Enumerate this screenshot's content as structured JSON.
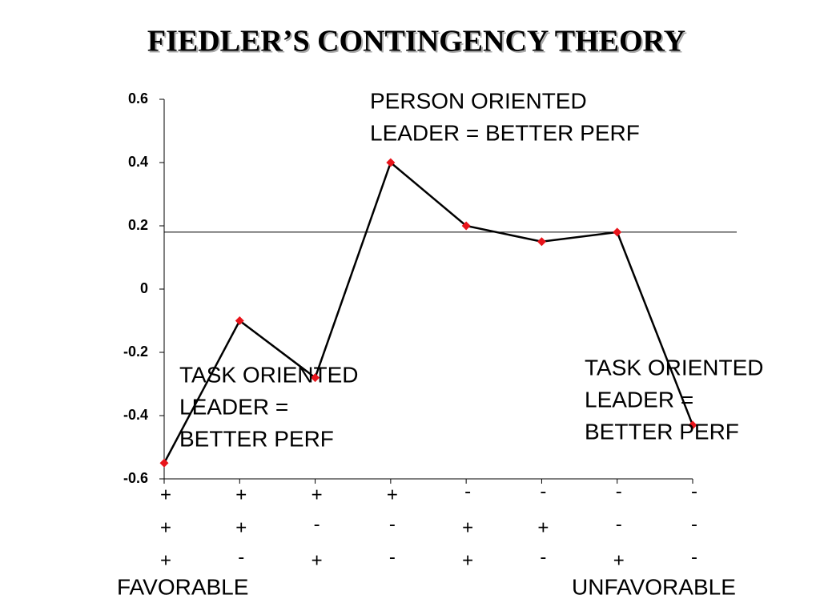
{
  "chart_data": {
    "type": "line",
    "title": "FIEDLER’S CONTINGENCY THEORY",
    "categories": [
      [
        "+",
        "+",
        "+"
      ],
      [
        "+",
        "+",
        "-"
      ],
      [
        "+",
        "-",
        "+"
      ],
      [
        "+",
        "-",
        "-"
      ],
      [
        "-",
        "+",
        "+"
      ],
      [
        "-",
        "+",
        "-"
      ],
      [
        "-",
        "-",
        "+"
      ],
      [
        "-",
        "-",
        "-"
      ]
    ],
    "values": [
      -0.55,
      -0.1,
      -0.28,
      0.4,
      0.2,
      0.15,
      0.18,
      -0.43
    ],
    "line_color": "#000000",
    "marker_color": "#e8141b",
    "ylim": [
      -0.6,
      0.6
    ],
    "yticks": [
      -0.6,
      -0.4,
      -0.2,
      0,
      0.2,
      0.4,
      0.6
    ],
    "reference_line": 0.18,
    "annotations": [
      {
        "lines": [
          "PERSON ORIENTED",
          "LEADER = BETTER PERF"
        ]
      },
      {
        "lines": [
          "TASK ORIENTED",
          "LEADER =",
          "BETTER PERF"
        ]
      },
      {
        "lines": [
          "TASK ORIENTED",
          "LEADER =",
          "BETTER PERF"
        ]
      }
    ],
    "x_end_labels": [
      "FAVORABLE",
      "UNFAVORABLE"
    ]
  }
}
